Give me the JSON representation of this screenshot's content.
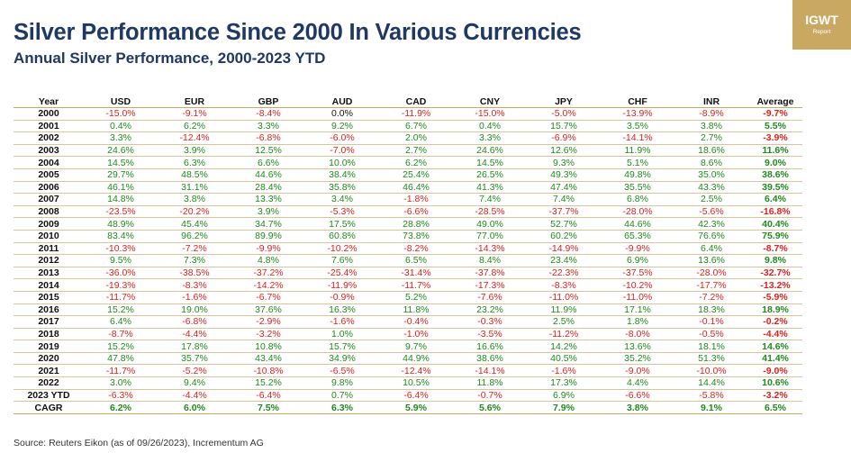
{
  "chart_data": {
    "type": "table",
    "title": "Silver Performance Since 2000 In Various Currencies",
    "subtitle": "Annual Silver Performance, 2000-2023 YTD",
    "columns": [
      "Year",
      "USD",
      "EUR",
      "GBP",
      "AUD",
      "CAD",
      "CNY",
      "JPY",
      "CHF",
      "INR",
      "Average"
    ],
    "rows": [
      [
        "2000",
        "-15.0%",
        "-9.1%",
        "-8.4%",
        "0.0%",
        "-11.9%",
        "-15.0%",
        "-5.0%",
        "-13.9%",
        "-8.9%",
        "-9.7%"
      ],
      [
        "2001",
        "0.4%",
        "6.2%",
        "3.3%",
        "9.2%",
        "6.7%",
        "0.4%",
        "15.7%",
        "3.5%",
        "3.8%",
        "5.5%"
      ],
      [
        "2002",
        "3.3%",
        "-12.4%",
        "-6.8%",
        "-6.0%",
        "2.0%",
        "3.3%",
        "-6.9%",
        "-14.1%",
        "2.7%",
        "-3.9%"
      ],
      [
        "2003",
        "24.6%",
        "3.9%",
        "12.5%",
        "-7.0%",
        "2.7%",
        "24.6%",
        "12.6%",
        "11.9%",
        "18.6%",
        "11.6%"
      ],
      [
        "2004",
        "14.5%",
        "6.3%",
        "6.6%",
        "10.0%",
        "6.2%",
        "14.5%",
        "9.3%",
        "5.1%",
        "8.6%",
        "9.0%"
      ],
      [
        "2005",
        "29.7%",
        "48.5%",
        "44.6%",
        "38.4%",
        "25.4%",
        "26.5%",
        "49.3%",
        "49.8%",
        "35.0%",
        "38.6%"
      ],
      [
        "2006",
        "46.1%",
        "31.1%",
        "28.4%",
        "35.8%",
        "46.4%",
        "41.3%",
        "47.4%",
        "35.5%",
        "43.3%",
        "39.5%"
      ],
      [
        "2007",
        "14.8%",
        "3.8%",
        "13.3%",
        "3.4%",
        "-1.8%",
        "7.4%",
        "7.4%",
        "6.8%",
        "2.5%",
        "6.4%"
      ],
      [
        "2008",
        "-23.5%",
        "-20.2%",
        "3.9%",
        "-5.3%",
        "-6.6%",
        "-28.5%",
        "-37.7%",
        "-28.0%",
        "-5.6%",
        "-16.8%"
      ],
      [
        "2009",
        "48.9%",
        "45.4%",
        "34.7%",
        "17.5%",
        "28.8%",
        "49.0%",
        "52.7%",
        "44.6%",
        "42.3%",
        "40.4%"
      ],
      [
        "2010",
        "83.4%",
        "96.2%",
        "89.9%",
        "60.8%",
        "73.8%",
        "77.0%",
        "60.2%",
        "65.3%",
        "76.6%",
        "75.9%"
      ],
      [
        "2011",
        "-10.3%",
        "-7.2%",
        "-9.9%",
        "-10.2%",
        "-8.2%",
        "-14.3%",
        "-14.9%",
        "-9.9%",
        "6.4%",
        "-8.7%"
      ],
      [
        "2012",
        "9.5%",
        "7.3%",
        "4.8%",
        "7.6%",
        "6.5%",
        "8.4%",
        "23.4%",
        "6.9%",
        "13.6%",
        "9.8%"
      ],
      [
        "2013",
        "-36.0%",
        "-38.5%",
        "-37.2%",
        "-25.4%",
        "-31.4%",
        "-37.8%",
        "-22.3%",
        "-37.5%",
        "-28.0%",
        "-32.7%"
      ],
      [
        "2014",
        "-19.3%",
        "-8.3%",
        "-14.2%",
        "-11.9%",
        "-11.7%",
        "-17.3%",
        "-8.3%",
        "-10.2%",
        "-17.7%",
        "-13.2%"
      ],
      [
        "2015",
        "-11.7%",
        "-1.6%",
        "-6.7%",
        "-0.9%",
        "5.2%",
        "-7.6%",
        "-11.0%",
        "-11.0%",
        "-7.2%",
        "-5.9%"
      ],
      [
        "2016",
        "15.2%",
        "19.0%",
        "37.6%",
        "16.3%",
        "11.8%",
        "23.2%",
        "11.9%",
        "17.1%",
        "18.3%",
        "18.9%"
      ],
      [
        "2017",
        "6.4%",
        "-6.8%",
        "-2.9%",
        "-1.6%",
        "-0.4%",
        "-0.3%",
        "2.5%",
        "1.8%",
        "-0.1%",
        "-0.2%"
      ],
      [
        "2018",
        "-8.7%",
        "-4.4%",
        "-3.2%",
        "1.0%",
        "-1.0%",
        "-3.5%",
        "-11.2%",
        "-8.0%",
        "-0.5%",
        "-4.4%"
      ],
      [
        "2019",
        "15.2%",
        "17.8%",
        "10.8%",
        "15.7%",
        "9.7%",
        "16.6%",
        "14.2%",
        "13.6%",
        "18.1%",
        "14.6%"
      ],
      [
        "2020",
        "47.8%",
        "35.7%",
        "43.4%",
        "34.9%",
        "44.9%",
        "38.6%",
        "40.5%",
        "35.2%",
        "51.3%",
        "41.4%"
      ],
      [
        "2021",
        "-11.7%",
        "-5.2%",
        "-10.8%",
        "-6.5%",
        "-12.4%",
        "-14.1%",
        "-1.6%",
        "-9.0%",
        "-10.0%",
        "-9.0%"
      ],
      [
        "2022",
        "3.0%",
        "9.4%",
        "15.2%",
        "9.8%",
        "10.5%",
        "11.8%",
        "17.3%",
        "4.4%",
        "14.4%",
        "10.6%"
      ],
      [
        "2023 YTD",
        "-6.3%",
        "-4.4%",
        "-6.4%",
        "0.7%",
        "-6.4%",
        "-0.7%",
        "6.9%",
        "-6.6%",
        "-5.8%",
        "-3.2%"
      ],
      [
        "CAGR",
        "6.2%",
        "6.0%",
        "7.5%",
        "6.3%",
        "5.9%",
        "5.6%",
        "7.9%",
        "3.8%",
        "9.1%",
        "6.5%"
      ]
    ]
  },
  "logo": {
    "name": "IGWT",
    "sub": "Report"
  },
  "source": "Source: Reuters Eikon (as of 09/26/2023), Incrementum AG",
  "colors": {
    "title": "#1f3864",
    "positive": "#1e8a1e",
    "negative": "#e02020",
    "gold": "#c9a862"
  }
}
